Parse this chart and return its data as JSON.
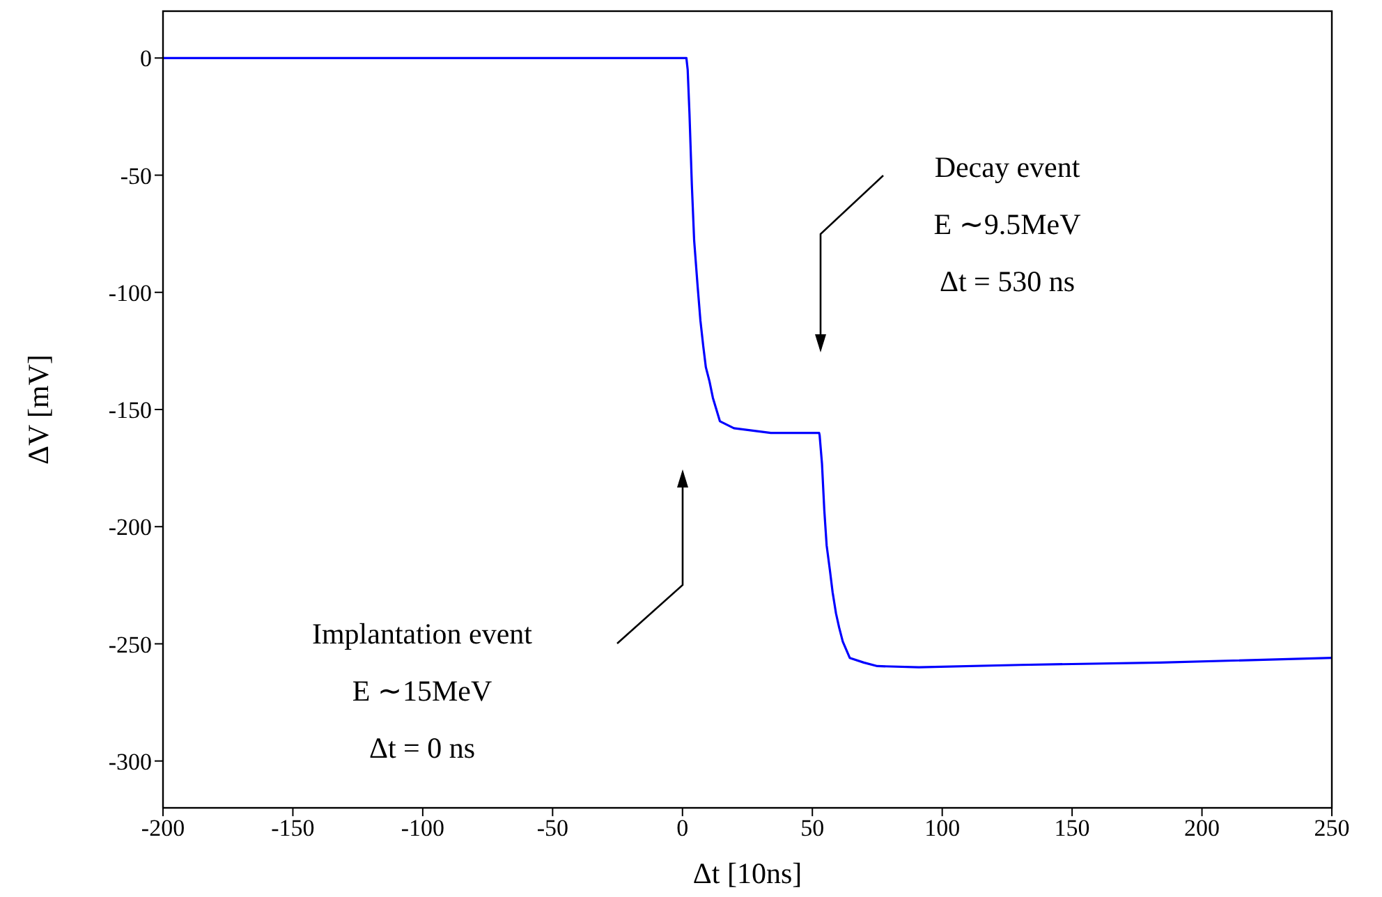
{
  "chart_data": {
    "type": "line",
    "xlabel": "Δt [10ns]",
    "ylabel": "ΔV [mV]",
    "xlim": [
      -200,
      250
    ],
    "xticks": [
      -200,
      -150,
      -100,
      -50,
      0,
      50,
      100,
      150,
      200,
      250
    ],
    "ylim": [
      -320,
      20
    ],
    "yticks": [
      0,
      -50,
      -100,
      -150,
      -200,
      -250,
      -300
    ],
    "grid": false,
    "legend": false,
    "marker": "none",
    "line_style": "solid",
    "annotations": [
      "Decay event\nE ∼9.5MeV\nΔt = 530 ns",
      "Implantation event\nE ∼15MeV\nΔt = 0 ns"
    ],
    "series": [
      {
        "color": "#0000ff",
        "x": [
          -200,
          -150,
          -100,
          -50,
          0,
          1.5,
          2,
          2.7,
          3.6,
          4.5,
          5.8,
          6.9,
          8,
          9,
          10.4,
          11.7,
          14.4,
          19.8,
          34,
          51,
          52.6,
          52.8,
          53.7,
          54.6,
          55.5,
          56.8,
          57.8,
          59.1,
          60.3,
          61.7,
          64.4,
          69.8,
          75,
          91,
          130,
          184,
          250
        ],
        "values": [
          0,
          0,
          0,
          0,
          0,
          0,
          -5,
          -24,
          -54,
          -78,
          -97,
          -112,
          -123,
          -132,
          -138,
          -145,
          -155,
          -158,
          -160,
          -160,
          -160,
          -161,
          -173,
          -193,
          -208,
          -219,
          -228,
          -237,
          -243,
          -249,
          -256,
          -258,
          -259.5,
          -260,
          -259,
          -258,
          -256
        ]
      }
    ]
  }
}
